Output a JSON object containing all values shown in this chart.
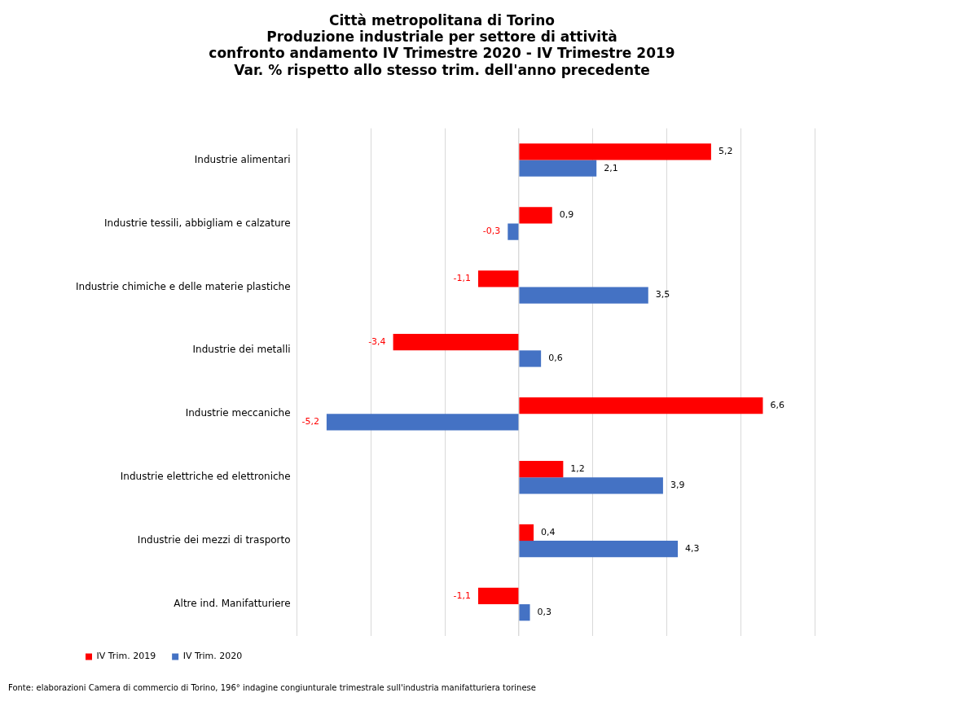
{
  "chart_data": {
    "type": "bar",
    "orientation": "horizontal",
    "title": "Città metropolitana di Torino\nProduzione industriale per settore di attività\nconfronto andamento IV Trimestre 2020 - IV Trimestre 2019\nVar. % rispetto allo stesso trim. dell'anno precedente",
    "categories": [
      "Industrie alimentari",
      "Industrie tessili, abbigliam e calzature",
      "Industrie chimiche e delle materie plastiche",
      "Industrie dei metalli",
      "Industrie meccaniche",
      "Industrie elettriche ed elettroniche",
      "Industrie dei mezzi di trasporto",
      "Altre ind. Manifatturiere"
    ],
    "series": [
      {
        "name": "IV Trim. 2019",
        "color": "#ff0000",
        "values": [
          5.2,
          0.9,
          -1.1,
          -3.4,
          6.6,
          1.2,
          0.4,
          -1.1
        ],
        "value_labels": [
          "5,2",
          "0,9",
          "-1,1",
          "-3,4",
          "6,6",
          "1,2",
          "0,4",
          "-1,1"
        ]
      },
      {
        "name": "IV Trim. 2020",
        "color": "#4472c4",
        "values": [
          2.1,
          -0.3,
          3.5,
          0.6,
          -5.2,
          3.9,
          4.3,
          0.3
        ],
        "value_labels": [
          "2,1",
          "-0,3",
          "3,5",
          "0,6",
          "-5,2",
          "3,9",
          "4,3",
          "0,3"
        ]
      }
    ],
    "xlim": [
      -6,
      8
    ],
    "xticks": [
      {
        "value": -6,
        "label": null
      },
      {
        "value": -4,
        "label": null
      },
      {
        "value": -2,
        "label": null
      },
      {
        "value": 0,
        "label": null
      },
      {
        "value": 2,
        "label": null
      },
      {
        "value": 4,
        "label": null
      },
      {
        "value": 6,
        "label": null
      },
      {
        "value": 8,
        "label": null
      }
    ],
    "tick_labels": "y",
    "grid": "x",
    "legend": "bottom left",
    "annotations": [
      "Fonte: elaborazioni Camera di commercio di Torino, 196° indagine congiunturale trimestrale sull'industria manifatturiera torinese"
    ]
  }
}
